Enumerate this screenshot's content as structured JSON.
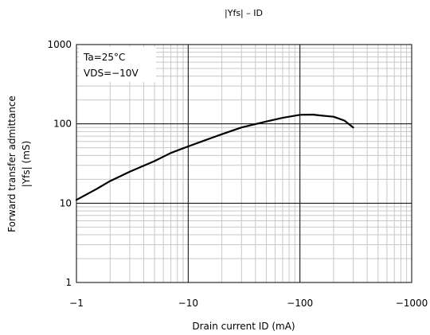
{
  "chart_data": {
    "type": "line",
    "title": "|Yfs| – ID",
    "xlabel": "Drain current  ID (mA)",
    "ylabel_lines": [
      "Forward transfer admittance",
      "|Yfs|  (mS)"
    ],
    "x_scale": "log",
    "y_scale": "log",
    "xlim": [
      -1,
      -1000
    ],
    "ylim": [
      1,
      1000
    ],
    "x_ticks": [
      -1,
      -10,
      -100,
      -1000
    ],
    "x_tick_labels": [
      "−1",
      "−10",
      "−100",
      "−1000"
    ],
    "y_ticks": [
      1,
      10,
      100,
      1000
    ],
    "y_tick_labels": [
      "1",
      "10",
      "100",
      "1000"
    ],
    "grid": true,
    "annotations": [
      "Ta=25°C",
      "VDS=−10V"
    ],
    "series": [
      {
        "name": "",
        "x": [
          -1,
          -1.5,
          -2,
          -3,
          -5,
          -7,
          -10,
          -15,
          -20,
          -30,
          -50,
          -70,
          -100,
          -130,
          -150,
          -200,
          -250,
          -300
        ],
        "y": [
          11,
          15,
          19,
          25,
          34,
          43,
          52,
          64,
          74,
          90,
          107,
          119,
          130,
          131,
          128,
          123,
          110,
          90
        ]
      }
    ]
  }
}
